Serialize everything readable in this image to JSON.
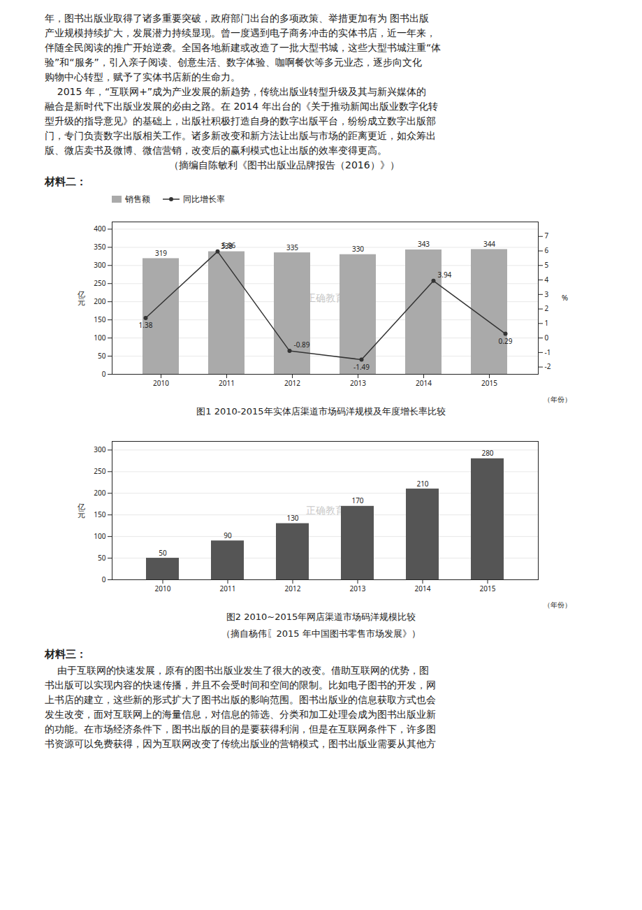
{
  "text_before": [
    "年，图书出版业取得了诸多重要突破，政府部门出台的多项政策、举措更加有为 图书出版",
    "产业规模持续扩大，发展潜力持续显现。曾一度遇到电子商务冲击的实体书店，近一年来，",
    "伴随全民阅读的推广开始逆袭。全国各地新建或改造了一批大型书城，这些大型书城注重“体",
    "验”和“服务”，引入亲子阅读、创意生活、数字体验、咖啊餐饮等多元业态，逐步向文化",
    "购物中心转型，赋予了实体书店新的生命力。",
    "    2015 年，“互联网+”成为产业发展的新趋势，传统出版业转型升级及其与新兴媒体的",
    "融合是新时代下出版业发展的必由之路。在 2014 年出台的《关于推动新闻出版业数字化转",
    "型升级的指导意见》的基础上，出版社积极打造自身的数字出版平台，纷纷成立数字出版部",
    "门，专门负责数字出版相关工作。诸多新改变和新方法让出版与市场的距离更近，如众筹出",
    "版、微店卖书及微博、微信营销，改变后的赢利模式也让出版的效率变得更高。",
    "                                        （摘编自陈敏利《图书出版业品牌报告（2016）》）"
  ],
  "heading_before": "材料二：",
  "chart_data": [
    {
      "type": "bar",
      "title": "图1 2010-2015年实体店渠道市场码洋规模及年度增长率比较",
      "categories": [
        "2010",
        "2011",
        "2012",
        "2013",
        "2014",
        "2015"
      ],
      "series": [
        {
          "name": "销售额",
          "type": "bar",
          "color": "#aaaaaa",
          "values": [
            319,
            338,
            335,
            330,
            343,
            344
          ]
        },
        {
          "name": "同比增长率",
          "type": "line",
          "color": "#333333",
          "marker": "circle",
          "axis": "y2",
          "values": [
            1.38,
            5.96,
            -0.89,
            -1.49,
            3.94,
            0.29
          ]
        }
      ],
      "xlabel": "（年份）",
      "ylabel": "亿\n元",
      "y2label": "%",
      "ylim": [
        0,
        420
      ],
      "yticks": [
        0,
        50,
        100,
        150,
        200,
        250,
        300,
        350,
        400
      ],
      "y2lim": [
        -2.5,
        8
      ],
      "y2ticks": [
        -2,
        -1,
        0,
        1,
        2,
        3,
        4,
        5,
        6,
        7
      ],
      "grid": true,
      "legend": "upper left",
      "data_labels": true,
      "annotations": [
        "正确教育"
      ]
    },
    {
      "type": "bar",
      "title": "图2 2010~2015年网店渠道市场码洋规模比较",
      "categories": [
        "2010",
        "2011",
        "2012",
        "2013",
        "2014",
        "2015"
      ],
      "values": [
        50,
        90,
        130,
        170,
        210,
        280
      ],
      "color": "#555555",
      "xlabel": "（年份）",
      "ylabel": "亿\n元",
      "ylim": [
        0,
        320
      ],
      "yticks": [
        0,
        50,
        100,
        150,
        200,
        250,
        300
      ],
      "grid": true,
      "data_labels": true,
      "annotations": [
        "正确教育"
      ],
      "source": "（摘自杨伟〖2015 年中国图书零售市场发展》）"
    }
  ],
  "heading_after": "材料三：",
  "text_after": [
    "    由于互联网的快速发展，原有的图书出版业发生了很大的改变。借助互联网的优势，图",
    "书出版可以实现内容的快速传播，并且不会受时间和空间的限制。比如电子图书的开发，网",
    "上书店的建立，这些新的形式扩大了图书出版的影响范围。图书出版业的信息获取方式也会",
    "发生改变，面对互联网上的海量信息，对信息的筛选、分类和加工处理会成为图书出版业新",
    "的功能。在市场经济条件下，图书出版的目的是要获得利润，但是在互联网条件下，许多图",
    "书资源可以免费获得，因为互联网改变了传统出版业的营销模式，图书出版业需要从其他方"
  ]
}
